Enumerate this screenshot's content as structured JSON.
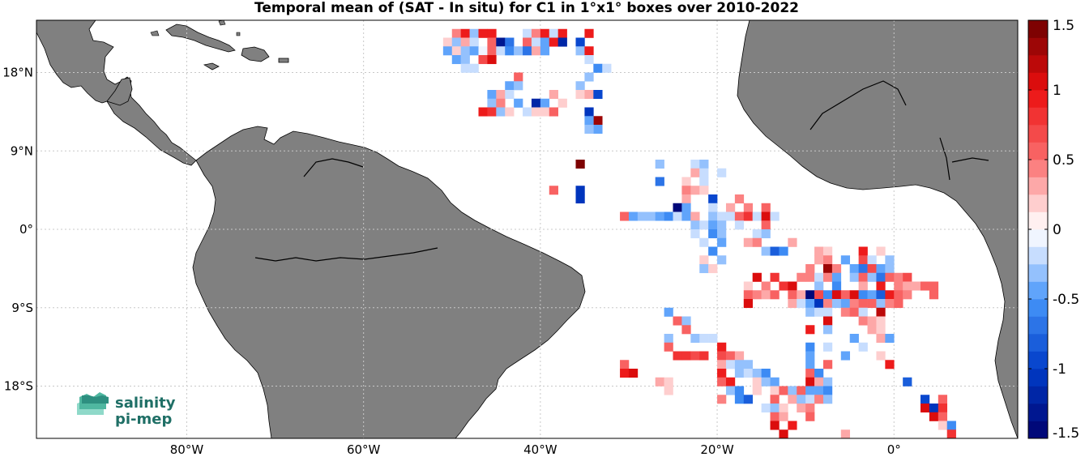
{
  "chart_data": {
    "type": "heatmap",
    "title": "Temporal mean of (SAT - In situ) for C1 in 1°x1° boxes over 2010-2022",
    "x_ticks": [
      {
        "value": -80,
        "label": "80°W"
      },
      {
        "value": -60,
        "label": "60°W"
      },
      {
        "value": -40,
        "label": "40°W"
      },
      {
        "value": -20,
        "label": "20°W"
      },
      {
        "value": 0,
        "label": "0°"
      }
    ],
    "y_ticks": [
      {
        "value": 18,
        "label": "18°N"
      },
      {
        "value": 9,
        "label": "9°N"
      },
      {
        "value": 0,
        "label": "0°"
      },
      {
        "value": -9,
        "label": "9°S"
      },
      {
        "value": -18,
        "label": "18°S"
      }
    ],
    "xlim": [
      -97,
      14
    ],
    "ylim": [
      -24,
      24
    ],
    "grid": true,
    "colorbar": {
      "min": -1.5,
      "max": 1.5,
      "levels": 24,
      "ticks": [
        {
          "value": 1.5,
          "label": "1.5"
        },
        {
          "value": 1,
          "label": "1"
        },
        {
          "value": 0.5,
          "label": "0.5"
        },
        {
          "value": 0,
          "label": "0"
        },
        {
          "value": -0.5,
          "label": "-0.5"
        },
        {
          "value": -1,
          "label": "-1"
        },
        {
          "value": -1.5,
          "label": "-1.5"
        }
      ]
    },
    "colors": {
      "land": "#808080",
      "coast": "#000000",
      "ocean": "#ffffff",
      "grid": "#c8c8c8"
    },
    "cells": [
      [
        -50,
        23,
        0.4
      ],
      [
        -49,
        23,
        0.9
      ],
      [
        -48,
        23,
        -0.3
      ],
      [
        -47,
        23,
        0.9
      ],
      [
        -46,
        23,
        0.9
      ],
      [
        -42,
        23,
        -0.2
      ],
      [
        -41,
        23,
        0.4
      ],
      [
        -40,
        23,
        0.9
      ],
      [
        -39,
        23,
        -0.2
      ],
      [
        -38,
        23,
        0.9
      ],
      [
        -35,
        23,
        0.9
      ],
      [
        -51,
        22,
        0.2
      ],
      [
        -50,
        22,
        -0.3
      ],
      [
        -49,
        22,
        0.3
      ],
      [
        -48,
        22,
        -0.2
      ],
      [
        -46,
        22,
        0.6
      ],
      [
        -45,
        22,
        -1.3
      ],
      [
        -44,
        22,
        -0.7
      ],
      [
        -42,
        22,
        0.5
      ],
      [
        -41,
        22,
        -0.2
      ],
      [
        -40,
        22,
        -0.4
      ],
      [
        -39,
        22,
        0.9
      ],
      [
        -38,
        22,
        -1.2
      ],
      [
        -36,
        22,
        -0.9
      ],
      [
        -51,
        21,
        -0.5
      ],
      [
        -50,
        21,
        0.2
      ],
      [
        -49,
        21,
        -0.3
      ],
      [
        -48,
        21,
        -0.5
      ],
      [
        -47,
        21,
        -0.1
      ],
      [
        -46,
        21,
        0.6
      ],
      [
        -45,
        21,
        -0.2
      ],
      [
        -44,
        21,
        -0.6
      ],
      [
        -43,
        21,
        -0.3
      ],
      [
        -42,
        21,
        -0.7
      ],
      [
        -41,
        21,
        0.3
      ],
      [
        -40,
        21,
        -0.5
      ],
      [
        -36,
        21,
        -0.3
      ],
      [
        -35,
        21,
        0.9
      ],
      [
        -50,
        20,
        -0.5
      ],
      [
        -49,
        20,
        -0.3
      ],
      [
        -47,
        20,
        0.7
      ],
      [
        -46,
        20,
        1.0
      ],
      [
        -35,
        20,
        -0.2
      ],
      [
        -49,
        19,
        -0.2
      ],
      [
        -48,
        19,
        -0.2
      ],
      [
        -34,
        19,
        -0.6
      ],
      [
        -33,
        19,
        -0.2
      ],
      [
        -43,
        18,
        0.5
      ],
      [
        -35,
        18,
        -0.3
      ],
      [
        -44,
        17,
        -0.5
      ],
      [
        -43,
        17,
        -0.3
      ],
      [
        -36,
        17,
        -0.3
      ],
      [
        -46,
        16,
        -0.5
      ],
      [
        -45,
        16,
        0.3
      ],
      [
        -44,
        16,
        -0.2
      ],
      [
        -39,
        16,
        0.3
      ],
      [
        -36,
        16,
        0.2
      ],
      [
        -35,
        16,
        0.3
      ],
      [
        -34,
        16,
        -1.0
      ],
      [
        -46,
        15,
        -0.3
      ],
      [
        -45,
        15,
        0.4
      ],
      [
        -43,
        15,
        -0.4
      ],
      [
        -41,
        15,
        -1.2
      ],
      [
        -40,
        15,
        -0.4
      ],
      [
        -38,
        15,
        0.2
      ],
      [
        -47,
        14,
        0.9
      ],
      [
        -46,
        14,
        0.8
      ],
      [
        -45,
        14,
        -0.3
      ],
      [
        -44,
        14,
        0.2
      ],
      [
        -42,
        14,
        -0.2
      ],
      [
        -41,
        14,
        0.2
      ],
      [
        -40,
        14,
        0.2
      ],
      [
        -39,
        14,
        0.5
      ],
      [
        -35,
        14,
        -1.1
      ],
      [
        -34,
        13,
        1.3
      ],
      [
        -35,
        13,
        -0.5
      ],
      [
        -34,
        12,
        -0.4
      ],
      [
        -35,
        12,
        -0.3
      ],
      [
        -36,
        8,
        1.5
      ],
      [
        -27,
        8,
        -0.3
      ],
      [
        -23,
        8,
        -0.2
      ],
      [
        -22,
        8,
        -0.3
      ],
      [
        -23,
        7,
        0.3
      ],
      [
        -22,
        7,
        -0.2
      ],
      [
        -20,
        7,
        -0.2
      ],
      [
        -27,
        6,
        -0.7
      ],
      [
        -24,
        6,
        0.2
      ],
      [
        -22,
        6,
        -0.2
      ],
      [
        -39,
        5,
        0.5
      ],
      [
        -36,
        5,
        -1.1
      ],
      [
        -24,
        5,
        0.4
      ],
      [
        -23,
        5,
        0.3
      ],
      [
        -22,
        5,
        0.2
      ],
      [
        -36,
        4,
        -1.1
      ],
      [
        -24,
        4,
        0.3
      ],
      [
        -21,
        4,
        -0.9
      ],
      [
        -18,
        4,
        0.4
      ],
      [
        -25,
        3,
        -1.5
      ],
      [
        -24,
        3,
        -0.4
      ],
      [
        -21,
        3,
        -0.2
      ],
      [
        -19,
        3,
        0.3
      ],
      [
        -17,
        3,
        0.4
      ],
      [
        -15,
        3,
        0.6
      ],
      [
        -31,
        2,
        0.6
      ],
      [
        -30,
        2,
        -0.4
      ],
      [
        -29,
        2,
        -0.3
      ],
      [
        -28,
        2,
        -0.3
      ],
      [
        -27,
        2,
        -0.5
      ],
      [
        -26,
        2,
        -0.6
      ],
      [
        -25,
        2,
        -0.2
      ],
      [
        -24,
        2,
        -0.4
      ],
      [
        -23,
        2,
        0.3
      ],
      [
        -21,
        2,
        -0.3
      ],
      [
        -20,
        2,
        -0.2
      ],
      [
        -19,
        2,
        -0.2
      ],
      [
        -18,
        2,
        0.5
      ],
      [
        -17,
        2,
        0.8
      ],
      [
        -16,
        2,
        -0.2
      ],
      [
        -15,
        2,
        1.0
      ],
      [
        -14,
        2,
        -0.2
      ],
      [
        -23,
        1,
        -0.3
      ],
      [
        -22,
        1,
        -0.2
      ],
      [
        -21,
        1,
        -0.4
      ],
      [
        -20,
        1,
        -0.3
      ],
      [
        -18,
        1,
        -0.2
      ],
      [
        -15,
        1,
        0.5
      ],
      [
        -23,
        0,
        -0.2
      ],
      [
        -21,
        0,
        -0.6
      ],
      [
        -20,
        0,
        -0.3
      ],
      [
        -16,
        0,
        -0.2
      ],
      [
        -15,
        0,
        -0.3
      ],
      [
        -22,
        -1,
        -0.2
      ],
      [
        -20,
        -1,
        -0.5
      ],
      [
        -17,
        -1,
        0.3
      ],
      [
        -16,
        -1,
        0.4
      ],
      [
        -12,
        -1,
        0.3
      ],
      [
        -21,
        -2,
        -0.6
      ],
      [
        -15,
        -2,
        -0.3
      ],
      [
        -14,
        -2,
        -0.8
      ],
      [
        -13,
        -2,
        -0.6
      ],
      [
        -9,
        -2,
        0.3
      ],
      [
        -8,
        -2,
        0.2
      ],
      [
        -4,
        -2,
        0.9
      ],
      [
        -2,
        -2,
        0.2
      ],
      [
        -22,
        -3,
        0.2
      ],
      [
        -20,
        -3,
        -0.3
      ],
      [
        -9,
        -3,
        0.3
      ],
      [
        -8,
        -3,
        0.4
      ],
      [
        -6,
        -3,
        -0.4
      ],
      [
        -4,
        -3,
        0.7
      ],
      [
        -3,
        -3,
        -0.2
      ],
      [
        -1,
        -3,
        -0.3
      ],
      [
        -22,
        -4,
        -0.3
      ],
      [
        -21,
        -4,
        0.2
      ],
      [
        -10,
        -4,
        0.4
      ],
      [
        -8,
        -4,
        1.3
      ],
      [
        -7,
        -4,
        0.4
      ],
      [
        -5,
        -4,
        -0.5
      ],
      [
        -4,
        -4,
        -0.7
      ],
      [
        -3,
        -4,
        0.7
      ],
      [
        -2,
        -4,
        -0.4
      ],
      [
        -1,
        -4,
        -0.3
      ],
      [
        -16,
        -5,
        1.0
      ],
      [
        -14,
        -5,
        0.8
      ],
      [
        -11,
        -5,
        0.4
      ],
      [
        -10,
        -5,
        0.4
      ],
      [
        -9,
        -5,
        -0.2
      ],
      [
        -8,
        -5,
        0.4
      ],
      [
        -7,
        -5,
        -0.5
      ],
      [
        -5,
        -5,
        -0.3
      ],
      [
        -4,
        -5,
        0.5
      ],
      [
        -3,
        -5,
        -0.3
      ],
      [
        -2,
        -5,
        -0.7
      ],
      [
        -1,
        -5,
        0.5
      ],
      [
        0,
        -5,
        0.4
      ],
      [
        1,
        -5,
        0.7
      ],
      [
        -17,
        -6,
        0.2
      ],
      [
        -15,
        -6,
        0.4
      ],
      [
        -13,
        -6,
        0.8
      ],
      [
        -12,
        -6,
        1.1
      ],
      [
        -9,
        -6,
        -0.3
      ],
      [
        -7,
        -6,
        -0.6
      ],
      [
        -4,
        -6,
        0.3
      ],
      [
        -2,
        -6,
        0.9
      ],
      [
        0,
        -6,
        0.4
      ],
      [
        1,
        -6,
        0.3
      ],
      [
        2,
        -6,
        0.3
      ],
      [
        3,
        -6,
        0.6
      ],
      [
        4,
        -6,
        0.5
      ],
      [
        -17,
        -7,
        0.5
      ],
      [
        -16,
        -7,
        0.4
      ],
      [
        -15,
        -7,
        0.3
      ],
      [
        -14,
        -7,
        0.5
      ],
      [
        -12,
        -7,
        0.5
      ],
      [
        -11,
        -7,
        0.3
      ],
      [
        -10,
        -7,
        -1.4
      ],
      [
        -9,
        -7,
        0.7
      ],
      [
        -8,
        -7,
        -0.6
      ],
      [
        -7,
        -7,
        1.0
      ],
      [
        -6,
        -7,
        0.5
      ],
      [
        -5,
        -7,
        1.1
      ],
      [
        -4,
        -7,
        -0.6
      ],
      [
        -3,
        -7,
        -0.4
      ],
      [
        -2,
        -7,
        -0.8
      ],
      [
        -1,
        -7,
        0.9
      ],
      [
        0,
        -7,
        0.6
      ],
      [
        1,
        -7,
        0.4
      ],
      [
        4,
        -7,
        0.5
      ],
      [
        -17,
        -8,
        1.1
      ],
      [
        -12,
        -8,
        0.3
      ],
      [
        -11,
        -8,
        -0.2
      ],
      [
        -10,
        -8,
        -0.4
      ],
      [
        -9,
        -8,
        -1.1
      ],
      [
        -8,
        -8,
        0.4
      ],
      [
        -7,
        -8,
        -0.3
      ],
      [
        -6,
        -8,
        -0.4
      ],
      [
        -5,
        -8,
        0.4
      ],
      [
        -4,
        -8,
        0.5
      ],
      [
        -3,
        -8,
        0.6
      ],
      [
        -2,
        -8,
        -0.3
      ],
      [
        -1,
        -8,
        0.4
      ],
      [
        0,
        -8,
        0.6
      ],
      [
        -26,
        -9,
        -0.5
      ],
      [
        -10,
        -9,
        -0.3
      ],
      [
        -9,
        -9,
        -0.2
      ],
      [
        -8,
        -9,
        -0.2
      ],
      [
        -6,
        -9,
        0.4
      ],
      [
        -5,
        -9,
        0.5
      ],
      [
        -4,
        -9,
        -0.2
      ],
      [
        -2,
        -9,
        1.2
      ],
      [
        -25,
        -10,
        0.5
      ],
      [
        -24,
        -10,
        -0.3
      ],
      [
        -8,
        -10,
        1.1
      ],
      [
        -4,
        -10,
        0.4
      ],
      [
        -3,
        -10,
        0.3
      ],
      [
        -2,
        -10,
        0.2
      ],
      [
        -24,
        -11,
        0.6
      ],
      [
        -10,
        -11,
        0.9
      ],
      [
        -8,
        -11,
        -0.3
      ],
      [
        -3,
        -11,
        0.3
      ],
      [
        -2,
        -11,
        0.2
      ],
      [
        -26,
        -12,
        -0.3
      ],
      [
        -23,
        -12,
        -0.3
      ],
      [
        -22,
        -12,
        -0.2
      ],
      [
        -21,
        -12,
        -0.2
      ],
      [
        -5,
        -12,
        -0.4
      ],
      [
        -2,
        -12,
        0.3
      ],
      [
        -1,
        -12,
        -0.4
      ],
      [
        -26,
        -13,
        0.5
      ],
      [
        -20,
        -13,
        0.9
      ],
      [
        -10,
        -13,
        -0.6
      ],
      [
        -8,
        -13,
        -0.2
      ],
      [
        -4,
        -13,
        -0.2
      ],
      [
        -25,
        -14,
        0.8
      ],
      [
        -24,
        -14,
        0.8
      ],
      [
        -23,
        -14,
        0.7
      ],
      [
        -22,
        -14,
        0.8
      ],
      [
        -20,
        -14,
        0.7
      ],
      [
        -19,
        -14,
        0.6
      ],
      [
        -18,
        -14,
        0.3
      ],
      [
        -10,
        -14,
        -0.5
      ],
      [
        -6,
        -14,
        -0.4
      ],
      [
        -2,
        -14,
        0.2
      ],
      [
        -31,
        -15,
        0.6
      ],
      [
        -20,
        -15,
        0.3
      ],
      [
        -19,
        -15,
        -0.2
      ],
      [
        -18,
        -15,
        -0.3
      ],
      [
        -17,
        -15,
        -0.3
      ],
      [
        -10,
        -15,
        -0.5
      ],
      [
        -8,
        -15,
        0.6
      ],
      [
        -1,
        -15,
        0.9
      ],
      [
        -31,
        -16,
        0.9
      ],
      [
        -30,
        -16,
        1.0
      ],
      [
        -20,
        -16,
        0.9
      ],
      [
        -18,
        -16,
        -0.3
      ],
      [
        -17,
        -16,
        -0.2
      ],
      [
        -16,
        -16,
        -0.3
      ],
      [
        -15,
        -16,
        -0.6
      ],
      [
        -10,
        -16,
        0.5
      ],
      [
        -9,
        -16,
        -0.6
      ],
      [
        -27,
        -17,
        0.3
      ],
      [
        -26,
        -17,
        0.2
      ],
      [
        -20,
        -17,
        0.5
      ],
      [
        -19,
        -17,
        0.9
      ],
      [
        -16,
        -17,
        0.2
      ],
      [
        -15,
        -17,
        -0.3
      ],
      [
        -14,
        -17,
        -0.5
      ],
      [
        -10,
        -17,
        1.0
      ],
      [
        -9,
        -17,
        0.3
      ],
      [
        -8,
        -17,
        -0.3
      ],
      [
        1,
        -17,
        -0.8
      ],
      [
        -26,
        -18,
        0.2
      ],
      [
        -19,
        -18,
        -0.3
      ],
      [
        -18,
        -18,
        -0.6
      ],
      [
        -16,
        -18,
        0.2
      ],
      [
        -14,
        -18,
        0.2
      ],
      [
        -13,
        -18,
        0.5
      ],
      [
        -12,
        -18,
        -0.3
      ],
      [
        -11,
        -18,
        0.5
      ],
      [
        -10,
        -18,
        -0.5
      ],
      [
        -9,
        -18,
        -0.4
      ],
      [
        -8,
        -18,
        -0.6
      ],
      [
        -20,
        -19,
        0.4
      ],
      [
        -18,
        -19,
        -0.6
      ],
      [
        -17,
        -19,
        -0.8
      ],
      [
        -14,
        -19,
        0.5
      ],
      [
        -12,
        -19,
        0.3
      ],
      [
        -11,
        -19,
        -0.3
      ],
      [
        -10,
        -19,
        -0.2
      ],
      [
        -9,
        -19,
        0.4
      ],
      [
        -8,
        -19,
        -0.3
      ],
      [
        3,
        -19,
        -1.0
      ],
      [
        5,
        -19,
        0.6
      ],
      [
        -15,
        -20,
        -0.2
      ],
      [
        -14,
        -20,
        -0.3
      ],
      [
        -13,
        -20,
        0.2
      ],
      [
        -11,
        -20,
        0.3
      ],
      [
        -10,
        -20,
        0.4
      ],
      [
        3,
        -20,
        1.1
      ],
      [
        4,
        -20,
        -1.1
      ],
      [
        5,
        -20,
        0.8
      ],
      [
        -14,
        -21,
        0.5
      ],
      [
        -13,
        -21,
        0.3
      ],
      [
        -10,
        -21,
        0.6
      ],
      [
        4,
        -21,
        1.0
      ],
      [
        5,
        -21,
        0.5
      ],
      [
        -14,
        -22,
        1.0
      ],
      [
        -12,
        -22,
        0.9
      ],
      [
        5,
        -22,
        0.2
      ],
      [
        6,
        -22,
        -0.6
      ],
      [
        -13,
        -23,
        1.0
      ],
      [
        -6,
        -23,
        0.3
      ],
      [
        6,
        -23,
        0.8
      ]
    ]
  },
  "logo": {
    "line1": "salinity",
    "line2": "pi-mep"
  }
}
